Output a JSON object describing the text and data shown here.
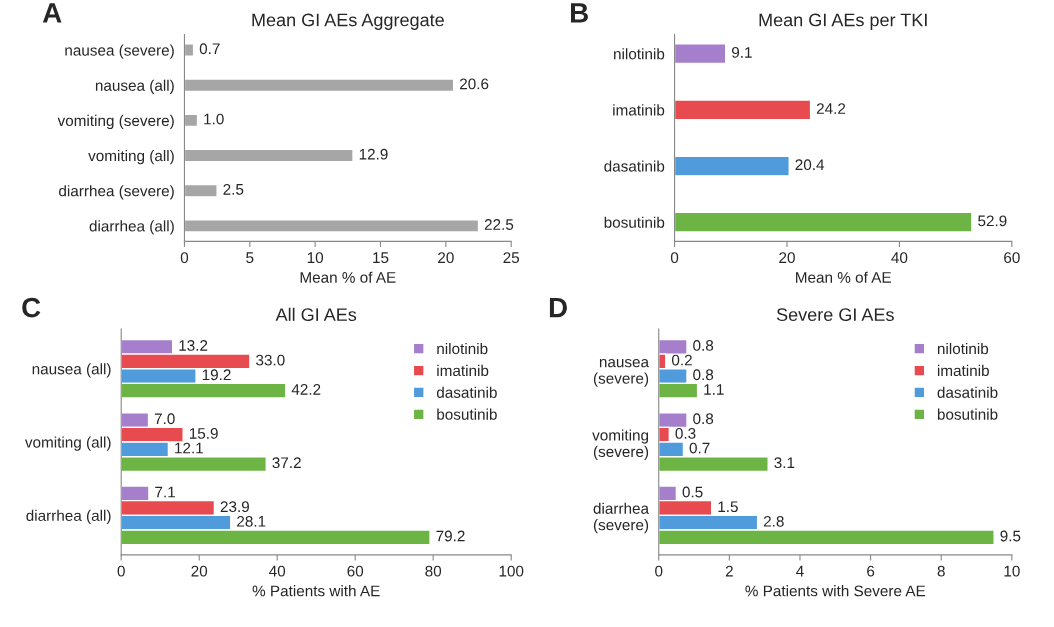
{
  "chart_data": [
    {
      "type": "bar",
      "orientation": "horizontal",
      "title": "Mean GI AEs Aggregate",
      "xlabel": "Mean % of AE",
      "annotations": [
        "A"
      ],
      "categories": [
        "nausea (severe)",
        "nausea (all)",
        "vomiting (severe)",
        "vomiting (all)",
        "diarrhea (severe)",
        "diarrhea (all)"
      ],
      "values": [
        0.7,
        20.6,
        1.0,
        12.9,
        2.5,
        22.5
      ],
      "value_labels": [
        "0.7",
        "20.6",
        "1.0",
        "12.9",
        "2.5",
        "22.5"
      ],
      "color": "#a6a6a6",
      "xlim": [
        0,
        25
      ],
      "xticks": [
        0,
        5,
        10,
        15,
        20,
        25
      ],
      "grid": false,
      "legend": false
    },
    {
      "type": "bar",
      "orientation": "horizontal",
      "title": "Mean GI AEs per TKI",
      "xlabel": "Mean % of AE",
      "annotations": [
        "B"
      ],
      "categories": [
        "nilotinib",
        "imatinib",
        "dasatinib",
        "bosutinib"
      ],
      "values": [
        9.1,
        24.2,
        20.4,
        52.9
      ],
      "colors": [
        "#a57fcb",
        "#e84b4f",
        "#4f9bdc",
        "#6cb545"
      ],
      "xlim": [
        0,
        60
      ],
      "xticks": [
        0,
        20,
        40,
        60
      ],
      "data_labels": true,
      "grid": false,
      "legend": false
    },
    {
      "type": "bar",
      "orientation": "horizontal",
      "title": "All GI AEs",
      "xlabel": "% Patients with AE",
      "annotations": [
        "C"
      ],
      "categories": [
        "nausea (all)",
        "vomiting (all)",
        "diarrhea (all)"
      ],
      "series": [
        {
          "name": "nilotinib",
          "color": "#a57fcb",
          "values": [
            13.2,
            7.0,
            7.1
          ],
          "value_labels": [
            "13.2",
            "7.0",
            "7.1"
          ]
        },
        {
          "name": "imatinib",
          "color": "#e84b4f",
          "values": [
            33.0,
            15.9,
            23.9
          ],
          "value_labels": [
            "33.0",
            "15.9",
            "23.9"
          ]
        },
        {
          "name": "dasatinib",
          "color": "#4f9bdc",
          "values": [
            19.2,
            12.1,
            28.1
          ],
          "value_labels": [
            "19.2",
            "12.1",
            "28.1"
          ]
        },
        {
          "name": "bosutinib",
          "color": "#6cb545",
          "values": [
            42.2,
            37.2,
            79.2
          ],
          "value_labels": [
            "42.2",
            "37.2",
            "79.2"
          ]
        }
      ],
      "xlim": [
        0,
        100
      ],
      "xticks": [
        0,
        20,
        40,
        60,
        80,
        100
      ],
      "grid": false,
      "legend": "top right"
    },
    {
      "type": "bar",
      "orientation": "horizontal",
      "title": "Severe GI AEs",
      "xlabel": "% Patients with Severe AE",
      "annotations": [
        "D"
      ],
      "categories": [
        "nausea\n(severe)",
        "vomiting\n(severe)",
        "diarrhea\n(severe)"
      ],
      "series": [
        {
          "name": "nilotinib",
          "color": "#a57fcb",
          "values": [
            0.8,
            0.8,
            0.5
          ]
        },
        {
          "name": "imatinib",
          "color": "#e84b4f",
          "values": [
            0.2,
            0.3,
            1.5
          ]
        },
        {
          "name": "dasatinib",
          "color": "#4f9bdc",
          "values": [
            0.8,
            0.7,
            2.8
          ]
        },
        {
          "name": "bosutinib",
          "color": "#6cb545",
          "values": [
            1.1,
            3.1,
            9.5
          ]
        }
      ],
      "xlim": [
        0,
        10
      ],
      "xticks": [
        0,
        2,
        4,
        6,
        8,
        10
      ],
      "data_labels": true,
      "grid": false,
      "legend": "top right"
    }
  ]
}
